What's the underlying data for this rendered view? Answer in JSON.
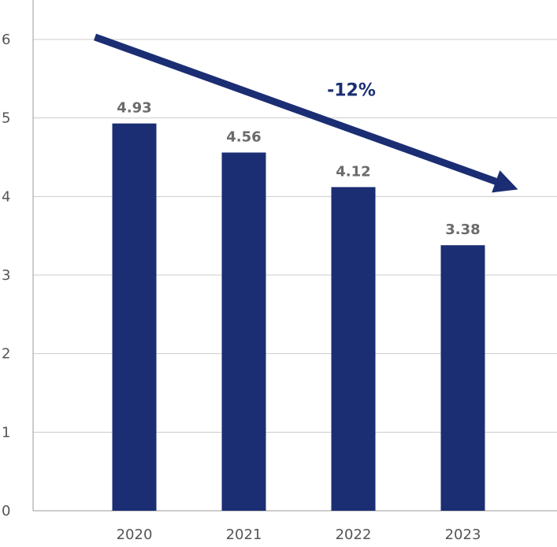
{
  "chart_data": {
    "type": "bar",
    "categories": [
      "2020",
      "2021",
      "2022",
      "2023"
    ],
    "values": [
      4.93,
      4.56,
      4.12,
      3.38
    ],
    "value_labels": [
      "4.93",
      "4.56",
      "4.12",
      "3.38"
    ],
    "title": "",
    "xlabel": "",
    "ylabel": "",
    "ylim": [
      0,
      6
    ],
    "yticks": [
      0,
      1,
      2,
      3,
      4,
      5,
      6
    ],
    "ytick_labels": [
      "0",
      "1",
      "2",
      "3",
      "4",
      "5",
      "6"
    ],
    "grid": true,
    "legend": "none",
    "annotation": {
      "text": "-12%",
      "type": "arrow",
      "start": {
        "category": "2020",
        "value": 6.0
      },
      "end": {
        "category": "2023",
        "value": 4.15
      }
    },
    "colors": {
      "bar": "#1b2e73",
      "arrow": "#1b2e73",
      "grid": "#cccccc",
      "axis": "#999999"
    }
  }
}
